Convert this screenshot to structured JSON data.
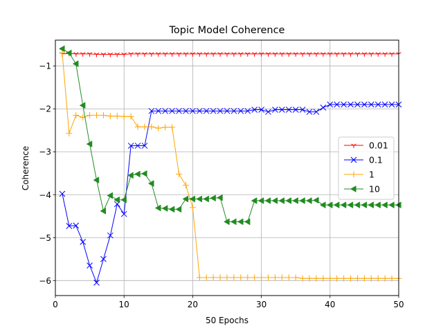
{
  "chart_data": {
    "type": "line",
    "title": "Topic Model Coherence",
    "xlabel": "50 Epochs",
    "ylabel": "Coherence",
    "xlim": [
      0,
      50
    ],
    "ylim": [
      -6.35,
      -0.4
    ],
    "xticks": [
      0,
      10,
      20,
      30,
      40,
      50
    ],
    "yticks": [
      -6,
      -5,
      -4,
      -3,
      -2,
      -1
    ],
    "grid": true,
    "legend_position": "center-right",
    "x": [
      1,
      2,
      3,
      4,
      5,
      6,
      7,
      8,
      9,
      10,
      11,
      12,
      13,
      14,
      15,
      16,
      17,
      18,
      19,
      20,
      21,
      22,
      23,
      24,
      25,
      26,
      27,
      28,
      29,
      30,
      31,
      32,
      33,
      34,
      35,
      36,
      37,
      38,
      39,
      40,
      41,
      42,
      43,
      44,
      45,
      46,
      47,
      48,
      49,
      50
    ],
    "series": [
      {
        "name": "0.01",
        "color": "#ff0000",
        "marker": "tri_down",
        "values": [
          -0.72,
          -0.71,
          -0.72,
          -0.72,
          -0.72,
          -0.73,
          -0.73,
          -0.73,
          -0.73,
          -0.73,
          -0.72,
          -0.72,
          -0.72,
          -0.72,
          -0.72,
          -0.72,
          -0.72,
          -0.72,
          -0.72,
          -0.72,
          -0.72,
          -0.72,
          -0.72,
          -0.72,
          -0.72,
          -0.72,
          -0.72,
          -0.72,
          -0.72,
          -0.72,
          -0.72,
          -0.72,
          -0.72,
          -0.72,
          -0.72,
          -0.72,
          -0.72,
          -0.72,
          -0.72,
          -0.72,
          -0.72,
          -0.72,
          -0.72,
          -0.72,
          -0.72,
          -0.72,
          -0.72,
          -0.72,
          -0.72,
          -0.72
        ]
      },
      {
        "name": "0.1",
        "color": "#0000ff",
        "marker": "x",
        "values": [
          -3.98,
          -4.73,
          -4.72,
          -5.1,
          -5.65,
          -6.05,
          -5.5,
          -4.95,
          -4.22,
          -4.45,
          -2.86,
          -2.86,
          -2.86,
          -2.05,
          -2.05,
          -2.05,
          -2.05,
          -2.05,
          -2.05,
          -2.05,
          -2.05,
          -2.05,
          -2.05,
          -2.05,
          -2.05,
          -2.05,
          -2.05,
          -2.05,
          -2.02,
          -2.02,
          -2.07,
          -2.02,
          -2.02,
          -2.02,
          -2.02,
          -2.02,
          -2.07,
          -2.07,
          -1.97,
          -1.9,
          -1.9,
          -1.9,
          -1.9,
          -1.9,
          -1.9,
          -1.9,
          -1.9,
          -1.9,
          -1.9,
          -1.9
        ]
      },
      {
        "name": "1",
        "color": "#ffa500",
        "marker": "plus",
        "values": [
          -0.7,
          -2.57,
          -2.15,
          -2.2,
          -2.15,
          -2.15,
          -2.15,
          -2.17,
          -2.17,
          -2.18,
          -2.18,
          -2.42,
          -2.42,
          -2.42,
          -2.45,
          -2.43,
          -2.43,
          -3.52,
          -3.78,
          -4.3,
          -5.93,
          -5.93,
          -5.93,
          -5.93,
          -5.93,
          -5.93,
          -5.93,
          -5.93,
          -5.93,
          -5.93,
          -5.93,
          -5.93,
          -5.93,
          -5.93,
          -5.93,
          -5.95,
          -5.95,
          -5.95,
          -5.95,
          -5.95,
          -5.95,
          -5.95,
          -5.95,
          -5.95,
          -5.95,
          -5.95,
          -5.95,
          -5.95,
          -5.95,
          -5.95
        ]
      },
      {
        "name": "10",
        "color": "#228b22",
        "marker": "tri_left",
        "values": [
          -0.6,
          -0.7,
          -0.95,
          -1.92,
          -2.82,
          -3.66,
          -4.38,
          -4.02,
          -4.12,
          -4.12,
          -3.55,
          -3.52,
          -3.51,
          -3.74,
          -4.31,
          -4.32,
          -4.34,
          -4.34,
          -4.1,
          -4.1,
          -4.1,
          -4.1,
          -4.08,
          -4.07,
          -4.63,
          -4.63,
          -4.63,
          -4.63,
          -4.14,
          -4.14,
          -4.14,
          -4.14,
          -4.14,
          -4.14,
          -4.14,
          -4.14,
          -4.14,
          -4.13,
          -4.24,
          -4.24,
          -4.24,
          -4.24,
          -4.24,
          -4.24,
          -4.24,
          -4.24,
          -4.24,
          -4.24,
          -4.24,
          -4.24
        ]
      }
    ]
  }
}
